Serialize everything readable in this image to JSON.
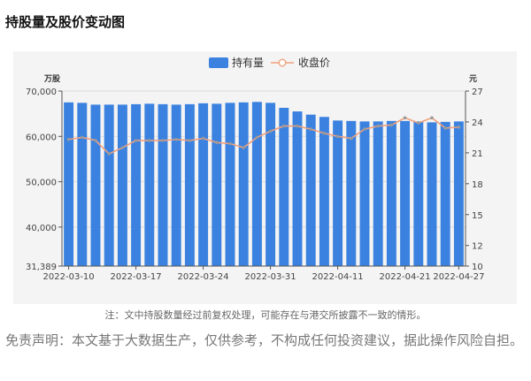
{
  "page": {
    "title": "持股量及股价变动图",
    "note": "注：文中持股数量经过前复权处理，可能存在与港交所披露不一致的情形。",
    "disclaimer": "免责声明：本文基于大数据生产，仅供参考，不构成任何投资建议，据此操作风险自担。"
  },
  "colors": {
    "bar": "#3b82e0",
    "line": "#f0a07c",
    "point": "#9a9a9a"
  },
  "chart_data": {
    "type": "bar",
    "legend": [
      "持有量",
      "收盘价"
    ],
    "legend_position": "top-center",
    "y_left": {
      "unit": "万股",
      "ylim": [
        31389,
        70000
      ],
      "ticks": [
        "70,000",
        "60,000",
        "50,000",
        "40,000",
        "31,389"
      ],
      "tick_values": [
        70000,
        60000,
        50000,
        40000,
        31389
      ]
    },
    "y_right": {
      "unit": "元",
      "ylim": [
        10,
        27
      ],
      "ticks": [
        "27",
        "24",
        "21",
        "18",
        "15",
        "12",
        "10"
      ],
      "tick_values": [
        27,
        24,
        21,
        18,
        15,
        12,
        10
      ]
    },
    "x_tick_labels": [
      "2022-03-10",
      "2022-03-17",
      "2022-03-24",
      "2022-03-31",
      "2022-04-11",
      "2022-04-21",
      "2022-04-27"
    ],
    "x_tick_index": [
      0,
      5,
      10,
      15,
      20,
      25,
      29
    ],
    "categories": [
      "2022-03-10",
      "2022-03-11",
      "2022-03-14",
      "2022-03-15",
      "2022-03-16",
      "2022-03-17",
      "2022-03-18",
      "2022-03-21",
      "2022-03-22",
      "2022-03-23",
      "2022-03-24",
      "2022-03-25",
      "2022-03-28",
      "2022-03-29",
      "2022-03-30",
      "2022-03-31",
      "2022-04-01",
      "2022-04-04",
      "2022-04-06",
      "2022-04-07",
      "2022-04-11",
      "2022-04-12",
      "2022-04-13",
      "2022-04-14",
      "2022-04-19",
      "2022-04-21",
      "2022-04-22",
      "2022-04-25",
      "2022-04-26",
      "2022-04-27"
    ],
    "series": [
      {
        "name": "持有量",
        "type": "bar",
        "values": [
          67500,
          67400,
          67000,
          67000,
          67000,
          67100,
          67200,
          67100,
          67000,
          67100,
          67300,
          67200,
          67400,
          67500,
          67600,
          67400,
          66300,
          65500,
          64800,
          64300,
          63500,
          63400,
          63300,
          63300,
          63400,
          63400,
          63300,
          63100,
          63200,
          63300
        ]
      },
      {
        "name": "收盘价",
        "type": "line",
        "values": [
          22.3,
          22.5,
          22.2,
          20.9,
          21.5,
          22.2,
          22.2,
          22.2,
          22.3,
          22.2,
          22.4,
          22.0,
          21.9,
          21.5,
          22.5,
          23.1,
          23.6,
          23.6,
          23.3,
          22.9,
          22.6,
          22.4,
          23.3,
          23.6,
          23.7,
          24.4,
          23.9,
          24.4,
          23.4,
          23.5
        ]
      }
    ]
  }
}
